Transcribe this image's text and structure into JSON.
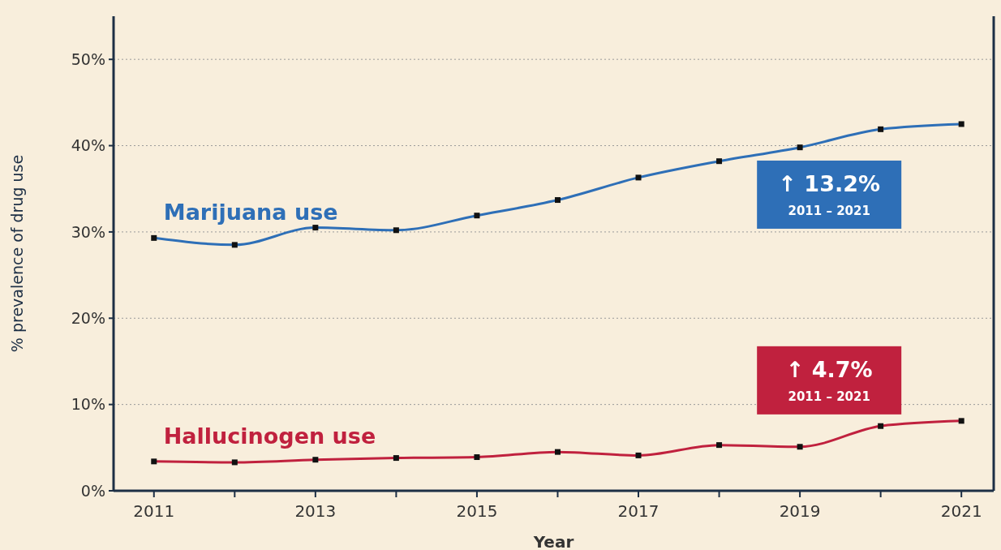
{
  "chart_data": {
    "type": "line",
    "xlabel": "Year",
    "ylabel": "% prevalence of drug use",
    "x": [
      2011,
      2012,
      2013,
      2014,
      2015,
      2016,
      2017,
      2018,
      2019,
      2020,
      2021
    ],
    "series": [
      {
        "name": "Marijuana use",
        "color": "#2e6fb7",
        "values": [
          29.3,
          28.5,
          30.5,
          30.2,
          31.9,
          33.7,
          36.3,
          38.2,
          39.8,
          41.9,
          42.5
        ]
      },
      {
        "name": "Hallucinogen use",
        "color": "#c0213e",
        "values": [
          3.4,
          3.3,
          3.6,
          3.8,
          3.9,
          4.5,
          4.1,
          5.3,
          5.1,
          7.5,
          8.1
        ]
      }
    ],
    "xlim": [
      2010.5,
      2021.4
    ],
    "xticks": [
      2011,
      {
        "value": 2012,
        "label": null
      },
      2013,
      {
        "value": 2014,
        "label": null
      },
      2015,
      {
        "value": 2016,
        "label": null
      },
      2017,
      {
        "value": 2018,
        "label": null
      },
      2019,
      {
        "value": 2020,
        "label": null
      },
      2021
    ],
    "ylim": [
      0,
      55
    ],
    "yticks": [
      {
        "value": 0,
        "label": "0%"
      },
      {
        "value": 10,
        "label": "10%"
      },
      {
        "value": 20,
        "label": "20%"
      },
      {
        "value": 30,
        "label": "30%"
      },
      {
        "value": 40,
        "label": "40%"
      },
      {
        "value": 50,
        "label": "50%"
      }
    ],
    "grid": "y",
    "marker": "square",
    "line_style": "solid",
    "annotations": [
      "↑ 13.2%",
      "2011 – 2021",
      "↑ 4.7%",
      "2011 – 2021"
    ]
  }
}
